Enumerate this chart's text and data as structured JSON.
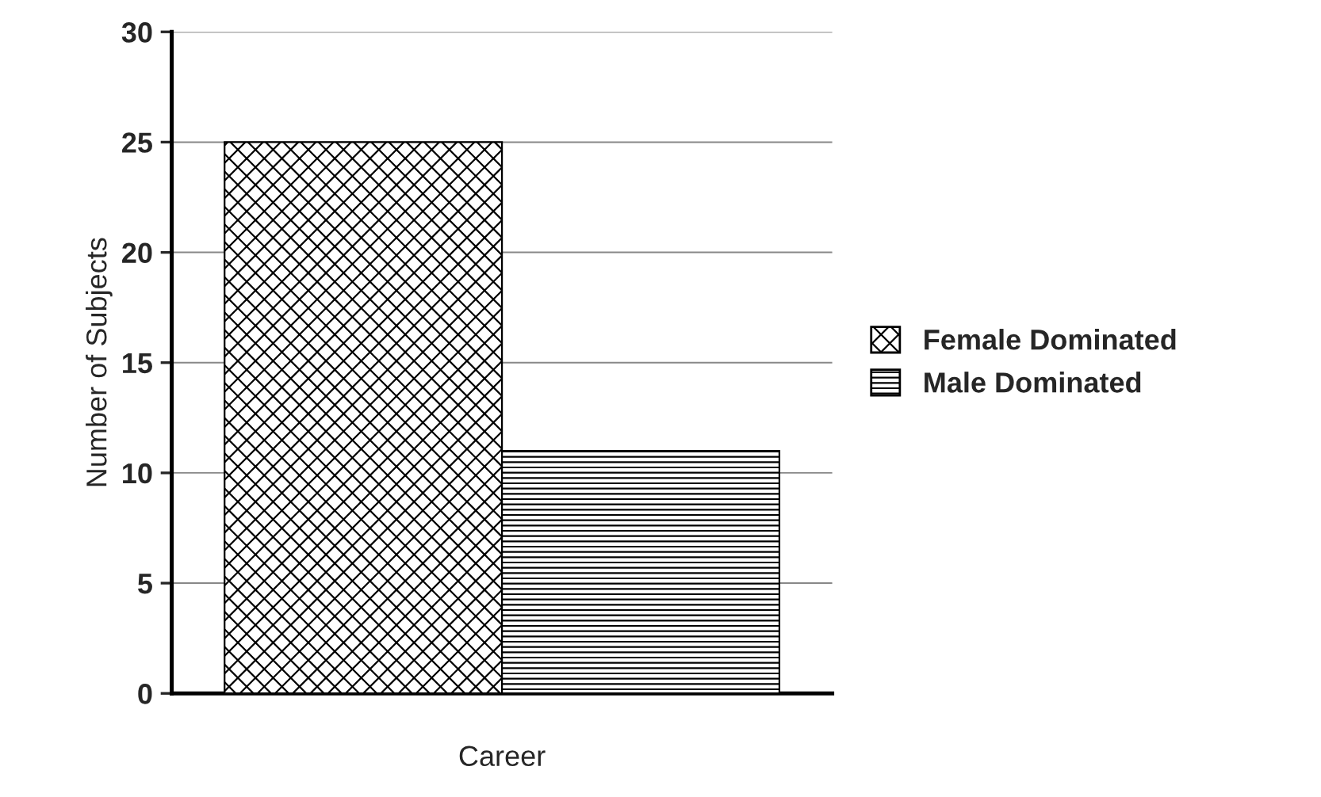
{
  "chart_data": {
    "type": "bar",
    "xlabel": "Career",
    "ylabel": "Number of Subjects",
    "categories": [
      null
    ],
    "series": [
      {
        "name": "Female Dominated",
        "color": "#000000",
        "values": [
          25
        ]
      },
      {
        "name": "Male Dominated",
        "color": "#000000",
        "values": [
          11
        ]
      }
    ],
    "ylim": [
      0,
      30
    ],
    "yticks": [
      0,
      5,
      10,
      15,
      20,
      25,
      30
    ],
    "grid": "y",
    "legend": "right"
  }
}
